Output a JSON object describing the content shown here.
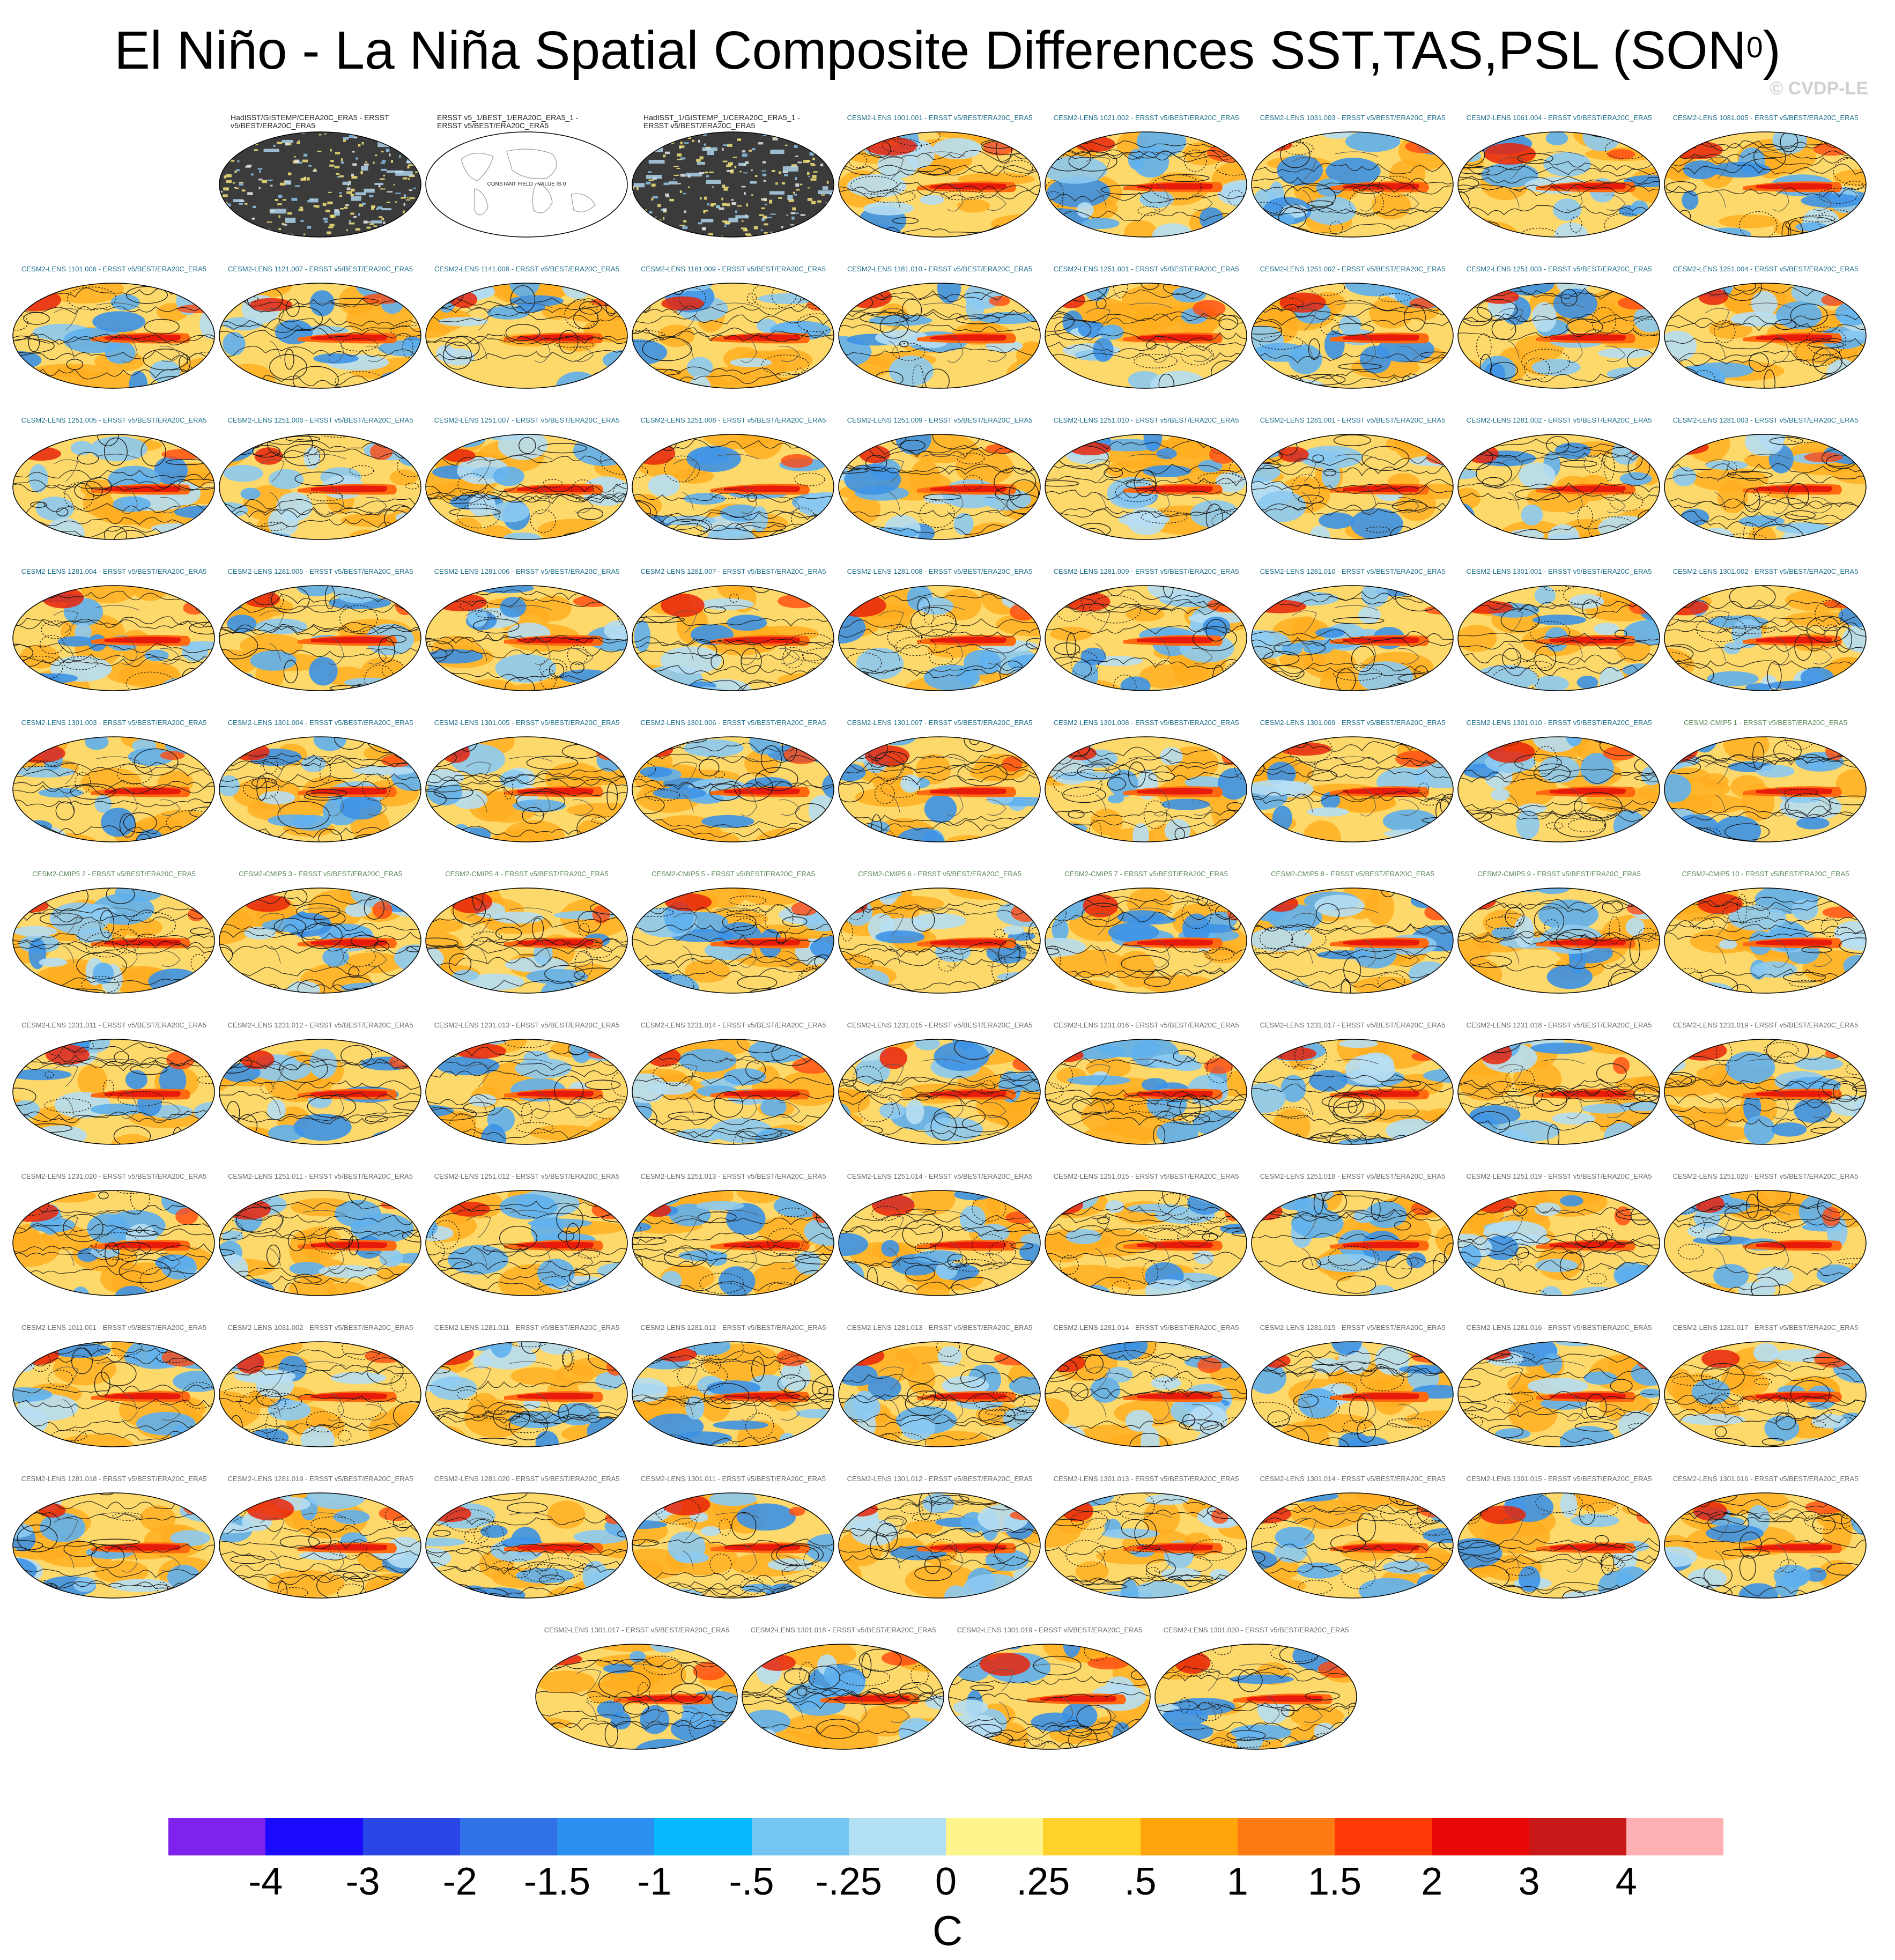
{
  "title": {
    "main": "El Niño - La Niña Spatial Composite Differences SST,TAS,PSL (SON",
    "sup": "0",
    "close": ")"
  },
  "copyright": "© CVDP-LE",
  "panels": [
    {
      "label": "HadISST/GISTEMP/CERA20C_ERA5 - ERSST v5/BEST/ERA20C_ERA5",
      "kind": "obs-dark"
    },
    {
      "label": "ERSST v5_1/BEST_1/ERA20C_ERA5_1 - ERSST v5/BEST/ERA20C_ERA5",
      "kind": "obs-blank",
      "note": "CONSTANT FIELD - VALUE IS 0"
    },
    {
      "label": "HadISST_1/GISTEMP_1/CERA20C_ERA5_1 - ERSST v5/BEST/ERA20C_ERA5",
      "kind": "obs-dark"
    },
    {
      "label": "CESM2-LENS 1001.001 - ERSST v5/BEST/ERA20C_ERA5",
      "kind": "lens"
    },
    {
      "label": "CESM2-LENS 1021.002 - ERSST v5/BEST/ERA20C_ERA5",
      "kind": "lens"
    },
    {
      "label": "CESM2-LENS 1031.003 - ERSST v5/BEST/ERA20C_ERA5",
      "kind": "lens"
    },
    {
      "label": "CESM2-LENS 1061.004 - ERSST v5/BEST/ERA20C_ERA5",
      "kind": "lens"
    },
    {
      "label": "CESM2-LENS 1081.005 - ERSST v5/BEST/ERA20C_ERA5",
      "kind": "lens"
    },
    {
      "label": "CESM2-LENS 1101.006 - ERSST v5/BEST/ERA20C_ERA5",
      "kind": "lens"
    },
    {
      "label": "CESM2-LENS 1121.007 - ERSST v5/BEST/ERA20C_ERA5",
      "kind": "lens"
    },
    {
      "label": "CESM2-LENS 1141.008 - ERSST v5/BEST/ERA20C_ERA5",
      "kind": "lens"
    },
    {
      "label": "CESM2-LENS 1161.009 - ERSST v5/BEST/ERA20C_ERA5",
      "kind": "lens"
    },
    {
      "label": "CESM2-LENS 1181.010 - ERSST v5/BEST/ERA20C_ERA5",
      "kind": "lens"
    },
    {
      "label": "CESM2-LENS 1251.001 - ERSST v5/BEST/ERA20C_ERA5",
      "kind": "lens"
    },
    {
      "label": "CESM2-LENS 1251.002 - ERSST v5/BEST/ERA20C_ERA5",
      "kind": "lens"
    },
    {
      "label": "CESM2-LENS 1251.003 - ERSST v5/BEST/ERA20C_ERA5",
      "kind": "lens"
    },
    {
      "label": "CESM2-LENS 1251.004 - ERSST v5/BEST/ERA20C_ERA5",
      "kind": "lens"
    },
    {
      "label": "CESM2-LENS 1251.005 - ERSST v5/BEST/ERA20C_ERA5",
      "kind": "lens"
    },
    {
      "label": "CESM2-LENS 1251.006 - ERSST v5/BEST/ERA20C_ERA5",
      "kind": "lens"
    },
    {
      "label": "CESM2-LENS 1251.007 - ERSST v5/BEST/ERA20C_ERA5",
      "kind": "lens"
    },
    {
      "label": "CESM2-LENS 1251.008 - ERSST v5/BEST/ERA20C_ERA5",
      "kind": "lens"
    },
    {
      "label": "CESM2-LENS 1251.009 - ERSST v5/BEST/ERA20C_ERA5",
      "kind": "lens"
    },
    {
      "label": "CESM2-LENS 1251.010 - ERSST v5/BEST/ERA20C_ERA5",
      "kind": "lens"
    },
    {
      "label": "CESM2-LENS 1281.001 - ERSST v5/BEST/ERA20C_ERA5",
      "kind": "lens"
    },
    {
      "label": "CESM2-LENS 1281.002 - ERSST v5/BEST/ERA20C_ERA5",
      "kind": "lens"
    },
    {
      "label": "CESM2-LENS 1281.003 - ERSST v5/BEST/ERA20C_ERA5",
      "kind": "lens"
    },
    {
      "label": "CESM2-LENS 1281.004 - ERSST v5/BEST/ERA20C_ERA5",
      "kind": "lens"
    },
    {
      "label": "CESM2-LENS 1281.005 - ERSST v5/BEST/ERA20C_ERA5",
      "kind": "lens"
    },
    {
      "label": "CESM2-LENS 1281.006 - ERSST v5/BEST/ERA20C_ERA5",
      "kind": "lens"
    },
    {
      "label": "CESM2-LENS 1281.007 - ERSST v5/BEST/ERA20C_ERA5",
      "kind": "lens"
    },
    {
      "label": "CESM2-LENS 1281.008 - ERSST v5/BEST/ERA20C_ERA5",
      "kind": "lens"
    },
    {
      "label": "CESM2-LENS 1281.009 - ERSST v5/BEST/ERA20C_ERA5",
      "kind": "lens"
    },
    {
      "label": "CESM2-LENS 1281.010 - ERSST v5/BEST/ERA20C_ERA5",
      "kind": "lens"
    },
    {
      "label": "CESM2-LENS 1301.001 - ERSST v5/BEST/ERA20C_ERA5",
      "kind": "lens"
    },
    {
      "label": "CESM2-LENS 1301.002 - ERSST v5/BEST/ERA20C_ERA5",
      "kind": "lens"
    },
    {
      "label": "CESM2-LENS 1301.003 - ERSST v5/BEST/ERA20C_ERA5",
      "kind": "lens"
    },
    {
      "label": "CESM2-LENS 1301.004 - ERSST v5/BEST/ERA20C_ERA5",
      "kind": "lens"
    },
    {
      "label": "CESM2-LENS 1301.005 - ERSST v5/BEST/ERA20C_ERA5",
      "kind": "lens"
    },
    {
      "label": "CESM2-LENS 1301.006 - ERSST v5/BEST/ERA20C_ERA5",
      "kind": "lens"
    },
    {
      "label": "CESM2-LENS 1301.007 - ERSST v5/BEST/ERA20C_ERA5",
      "kind": "lens"
    },
    {
      "label": "CESM2-LENS 1301.008 - ERSST v5/BEST/ERA20C_ERA5",
      "kind": "lens"
    },
    {
      "label": "CESM2-LENS 1301.009 - ERSST v5/BEST/ERA20C_ERA5",
      "kind": "lens"
    },
    {
      "label": "CESM2-LENS 1301.010 - ERSST v5/BEST/ERA20C_ERA5",
      "kind": "lens"
    },
    {
      "label": "CESM2-CMIP5 1 - ERSST v5/BEST/ERA20C_ERA5",
      "kind": "cmip"
    },
    {
      "label": "CESM2-CMIP5 2 - ERSST v5/BEST/ERA20C_ERA5",
      "kind": "cmip"
    },
    {
      "label": "CESM2-CMIP5 3 - ERSST v5/BEST/ERA20C_ERA5",
      "kind": "cmip"
    },
    {
      "label": "CESM2-CMIP5 4 - ERSST v5/BEST/ERA20C_ERA5",
      "kind": "cmip"
    },
    {
      "label": "CESM2-CMIP5 5 - ERSST v5/BEST/ERA20C_ERA5",
      "kind": "cmip"
    },
    {
      "label": "CESM2-CMIP5 6 - ERSST v5/BEST/ERA20C_ERA5",
      "kind": "cmip"
    },
    {
      "label": "CESM2-CMIP5 7 - ERSST v5/BEST/ERA20C_ERA5",
      "kind": "cmip"
    },
    {
      "label": "CESM2-CMIP5 8 - ERSST v5/BEST/ERA20C_ERA5",
      "kind": "cmip"
    },
    {
      "label": "CESM2-CMIP5 9 - ERSST v5/BEST/ERA20C_ERA5",
      "kind": "cmip"
    },
    {
      "label": "CESM2-CMIP5 10 - ERSST v5/BEST/ERA20C_ERA5",
      "kind": "cmip"
    },
    {
      "label": "CESM2-LENS 1231.011 - ERSST v5/BEST/ERA20C_ERA5",
      "kind": "lens-grey"
    },
    {
      "label": "CESM2-LENS 1231.012 - ERSST v5/BEST/ERA20C_ERA5",
      "kind": "lens-grey"
    },
    {
      "label": "CESM2-LENS 1231.013 - ERSST v5/BEST/ERA20C_ERA5",
      "kind": "lens-grey"
    },
    {
      "label": "CESM2-LENS 1231.014 - ERSST v5/BEST/ERA20C_ERA5",
      "kind": "lens-grey"
    },
    {
      "label": "CESM2-LENS 1231.015 - ERSST v5/BEST/ERA20C_ERA5",
      "kind": "lens-grey"
    },
    {
      "label": "CESM2-LENS 1231.016 - ERSST v5/BEST/ERA20C_ERA5",
      "kind": "lens-grey"
    },
    {
      "label": "CESM2-LENS 1231.017 - ERSST v5/BEST/ERA20C_ERA5",
      "kind": "lens-grey"
    },
    {
      "label": "CESM2-LENS 1231.018 - ERSST v5/BEST/ERA20C_ERA5",
      "kind": "lens-grey"
    },
    {
      "label": "CESM2-LENS 1231.019 - ERSST v5/BEST/ERA20C_ERA5",
      "kind": "lens-grey"
    },
    {
      "label": "CESM2-LENS 1231.020 - ERSST v5/BEST/ERA20C_ERA5",
      "kind": "lens-grey"
    },
    {
      "label": "CESM2-LENS 1251.011 - ERSST v5/BEST/ERA20C_ERA5",
      "kind": "lens-grey"
    },
    {
      "label": "CESM2-LENS 1251.012 - ERSST v5/BEST/ERA20C_ERA5",
      "kind": "lens-grey"
    },
    {
      "label": "CESM2-LENS 1251.013 - ERSST v5/BEST/ERA20C_ERA5",
      "kind": "lens-grey"
    },
    {
      "label": "CESM2-LENS 1251.014 - ERSST v5/BEST/ERA20C_ERA5",
      "kind": "lens-grey"
    },
    {
      "label": "CESM2-LENS 1251.015 - ERSST v5/BEST/ERA20C_ERA5",
      "kind": "lens-grey"
    },
    {
      "label": "CESM2-LENS 1251.018 - ERSST v5/BEST/ERA20C_ERA5",
      "kind": "lens-grey"
    },
    {
      "label": "CESM2-LENS 1251.019 - ERSST v5/BEST/ERA20C_ERA5",
      "kind": "lens-grey"
    },
    {
      "label": "CESM2-LENS 1251.020 - ERSST v5/BEST/ERA20C_ERA5",
      "kind": "lens-grey"
    },
    {
      "label": "CESM2-LENS 1011.001 - ERSST v5/BEST/ERA20C_ERA5",
      "kind": "lens-grey"
    },
    {
      "label": "CESM2-LENS 1031.002 - ERSST v5/BEST/ERA20C_ERA5",
      "kind": "lens-grey"
    },
    {
      "label": "CESM2-LENS 1281.011 - ERSST v5/BEST/ERA20C_ERA5",
      "kind": "lens-grey"
    },
    {
      "label": "CESM2-LENS 1281.012 - ERSST v5/BEST/ERA20C_ERA5",
      "kind": "lens-grey"
    },
    {
      "label": "CESM2-LENS 1281.013 - ERSST v5/BEST/ERA20C_ERA5",
      "kind": "lens-grey"
    },
    {
      "label": "CESM2-LENS 1281.014 - ERSST v5/BEST/ERA20C_ERA5",
      "kind": "lens-grey"
    },
    {
      "label": "CESM2-LENS 1281.015 - ERSST v5/BEST/ERA20C_ERA5",
      "kind": "lens-grey"
    },
    {
      "label": "CESM2-LENS 1281.016 - ERSST v5/BEST/ERA20C_ERA5",
      "kind": "lens-grey"
    },
    {
      "label": "CESM2-LENS 1281.017 - ERSST v5/BEST/ERA20C_ERA5",
      "kind": "lens-grey"
    },
    {
      "label": "CESM2-LENS 1281.018 - ERSST v5/BEST/ERA20C_ERA5",
      "kind": "lens-grey"
    },
    {
      "label": "CESM2-LENS 1281.019 - ERSST v5/BEST/ERA20C_ERA5",
      "kind": "lens-grey"
    },
    {
      "label": "CESM2-LENS 1281.020 - ERSST v5/BEST/ERA20C_ERA5",
      "kind": "lens-grey"
    },
    {
      "label": "CESM2-LENS 1301.011 - ERSST v5/BEST/ERA20C_ERA5",
      "kind": "lens-grey"
    },
    {
      "label": "CESM2-LENS 1301.012 - ERSST v5/BEST/ERA20C_ERA5",
      "kind": "lens-grey"
    },
    {
      "label": "CESM2-LENS 1301.013 - ERSST v5/BEST/ERA20C_ERA5",
      "kind": "lens-grey"
    },
    {
      "label": "CESM2-LENS 1301.014 - ERSST v5/BEST/ERA20C_ERA5",
      "kind": "lens-grey"
    },
    {
      "label": "CESM2-LENS 1301.015 - ERSST v5/BEST/ERA20C_ERA5",
      "kind": "lens-grey"
    },
    {
      "label": "CESM2-LENS 1301.016 - ERSST v5/BEST/ERA20C_ERA5",
      "kind": "lens-grey"
    },
    {
      "label": "CESM2-LENS 1301.017 - ERSST v5/BEST/ERA20C_ERA5",
      "kind": "lens-grey"
    },
    {
      "label": "CESM2-LENS 1301.018 - ERSST v5/BEST/ERA20C_ERA5",
      "kind": "lens-grey"
    },
    {
      "label": "CESM2-LENS 1301.019 - ERSST v5/BEST/ERA20C_ERA5",
      "kind": "lens-grey"
    },
    {
      "label": "CESM2-LENS 1301.020 - ERSST v5/BEST/ERA20C_ERA5",
      "kind": "lens-grey"
    }
  ],
  "colorbar": {
    "colors": [
      "#7f22ee",
      "#1a0aff",
      "#2a45e6",
      "#3171e8",
      "#2b8ff0",
      "#05b8ff",
      "#74c6f2",
      "#b3dff2",
      "#fdf48c",
      "#ffd12a",
      "#ffa50a",
      "#ff7a10",
      "#ff3a06",
      "#e80808",
      "#c81818",
      "#ffb0b4"
    ],
    "labels": [
      "-4",
      "-3",
      "-2",
      "-1.5",
      "-1",
      "-.5",
      "-.25",
      "0",
      ".25",
      ".5",
      "1",
      "1.5",
      "2",
      "3",
      "4"
    ],
    "units": "C"
  }
}
